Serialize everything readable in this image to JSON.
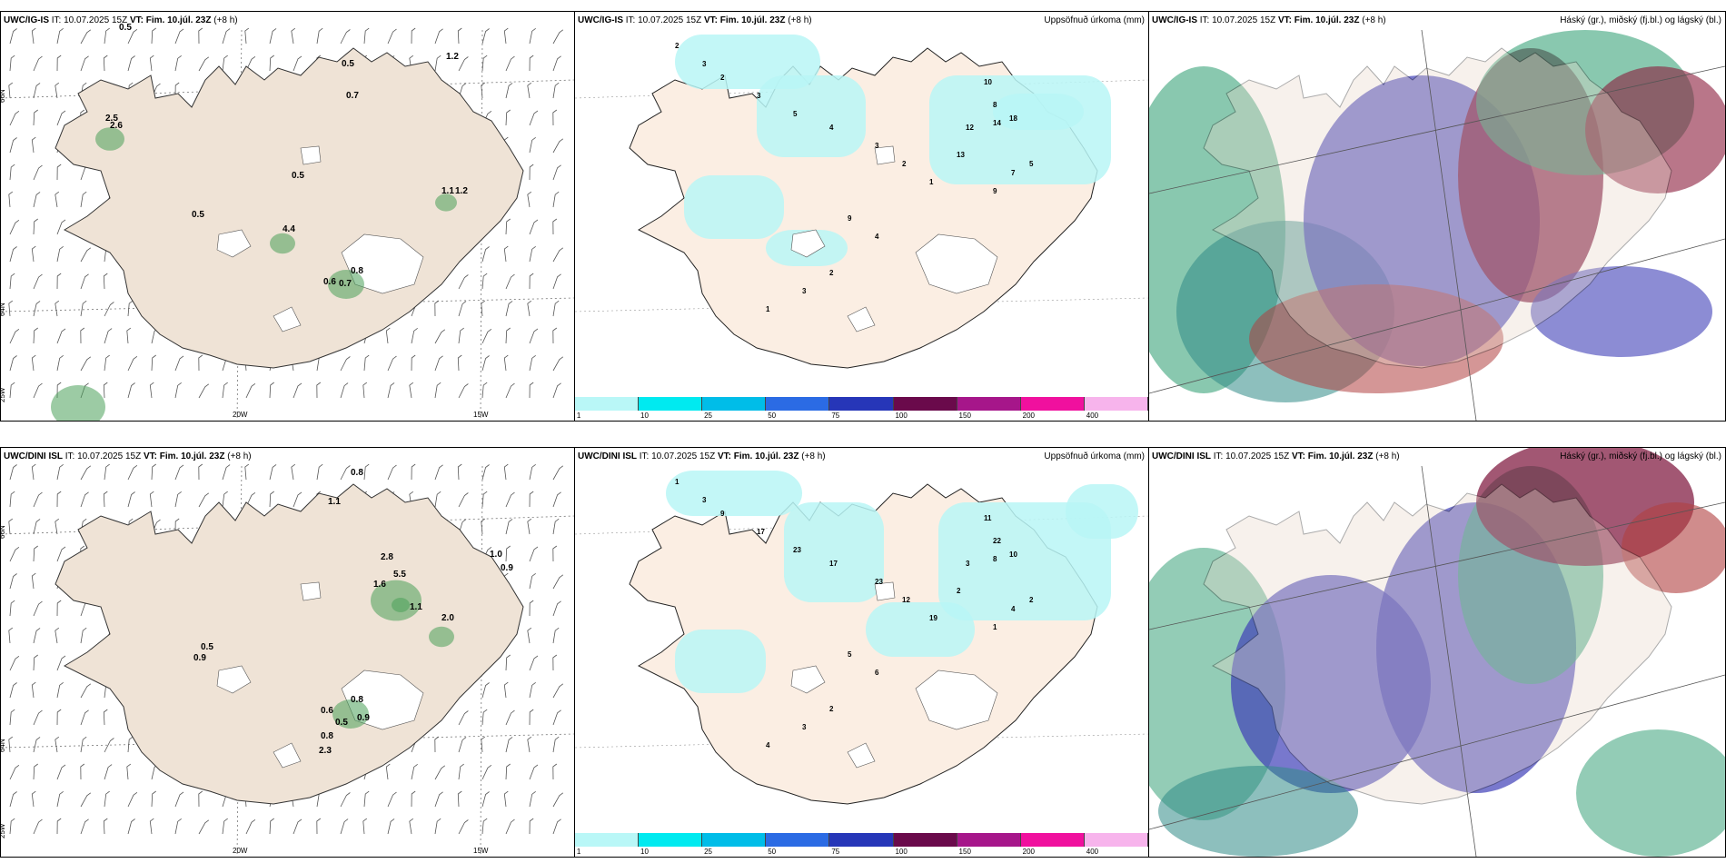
{
  "rows": [
    {
      "model": "UWC/IG-IS",
      "it_label": "IT:",
      "it": "10.07.2025 15Z",
      "vt_label": "VT:",
      "vt": "Fim. 10.júl. 23Z",
      "lead": "(+8 h)",
      "precip_title": "Uppsöfnuð úrkoma (mm)",
      "cloud_title": "Háský (gr.), miðský (fj.bl.) og lágský (bl.)",
      "wind_labels": [
        "0.5",
        "1.2",
        "0.5",
        "0.7",
        "2.5",
        "2.6",
        "0.5",
        "0.5",
        "1.1",
        "1.2",
        "0.8",
        "0.6",
        "0.7",
        "4.4"
      ],
      "precip_labels": [
        "2",
        "3",
        "2",
        "3",
        "5",
        "4",
        "3",
        "2",
        "1",
        "10",
        "8",
        "14",
        "18",
        "12",
        "13",
        "9",
        "7",
        "5",
        "9",
        "4",
        "2",
        "3",
        "1"
      ]
    },
    {
      "model": "UWC/DINI ISL",
      "it_label": "IT:",
      "it": "10.07.2025 15Z",
      "vt_label": "VT:",
      "vt": "Fim. 10.júl. 23Z",
      "lead": "(+8 h)",
      "precip_title": "Uppsöfnuð úrkoma (mm)",
      "cloud_title": "Háský (gr.), miðský (fj.bl.) og lágský (bl.)",
      "wind_labels": [
        "0.8",
        "1.1",
        "2.8",
        "1.6",
        "5.5",
        "1.1",
        "2.0",
        "1.0",
        "0.9",
        "0.5",
        "0.9",
        "0.6",
        "0.8",
        "0.5",
        "0.9",
        "0.8",
        "2.3"
      ],
      "precip_labels": [
        "1",
        "3",
        "9",
        "17",
        "23",
        "17",
        "23",
        "12",
        "19",
        "11",
        "22",
        "8",
        "10",
        "3",
        "2",
        "1",
        "4",
        "2",
        "5",
        "6",
        "2",
        "3",
        "4"
      ]
    }
  ],
  "axes": {
    "lat_upper": "66N",
    "lat_lower": "64N",
    "lon_west": "25W",
    "lon_mid": "20W",
    "lon_east": "15W"
  },
  "colorbar": {
    "ticks": [
      "1",
      "10",
      "25",
      "50",
      "75",
      "100",
      "150",
      "200",
      "400"
    ],
    "colors": [
      "#b9f7f7",
      "#00eaf0",
      "#00bde8",
      "#2b6be4",
      "#2636b8",
      "#6a0a4b",
      "#a6168a",
      "#f0109e",
      "#f7b4ec"
    ]
  }
}
